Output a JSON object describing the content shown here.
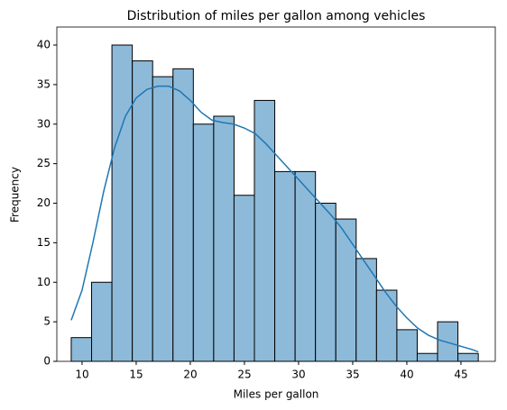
{
  "chart_data": {
    "type": "histogram",
    "title": "Distribution of miles per gallon among vehicles",
    "xlabel": "Miles per gallon",
    "ylabel": "Frequency",
    "bins": [
      9,
      10.88,
      12.76,
      14.64,
      16.52,
      18.4,
      20.28,
      22.16,
      24.04,
      25.92,
      27.8,
      29.68,
      31.56,
      33.44,
      35.32,
      37.2,
      39.08,
      40.96,
      42.84,
      44.72,
      46.6
    ],
    "counts": [
      3,
      10,
      40,
      38,
      36,
      37,
      30,
      31,
      21,
      33,
      24,
      24,
      20,
      18,
      13,
      9,
      4,
      1,
      5,
      1
    ],
    "color": "#8ebad9",
    "edgecolor": "#000000",
    "kde": {
      "color": "#1f77b4",
      "x": [
        9,
        10,
        11,
        12,
        13,
        14,
        15,
        16,
        17,
        18,
        19,
        20,
        21,
        22,
        23,
        24,
        25,
        26,
        27,
        28,
        29,
        30,
        31,
        32,
        33,
        34,
        35,
        36,
        37,
        38,
        39,
        40,
        41,
        42,
        43,
        44,
        45,
        46,
        46.6
      ],
      "values": [
        5.2,
        9,
        15,
        21.5,
        27,
        31,
        33.3,
        34.4,
        34.8,
        34.8,
        34.2,
        33,
        31.5,
        30.5,
        30.2,
        30,
        29.5,
        28.8,
        27.5,
        26,
        24.5,
        23,
        21.5,
        20,
        18.5,
        16.8,
        14.8,
        12.8,
        10.8,
        8.8,
        7,
        5.5,
        4.2,
        3.3,
        2.7,
        2.3,
        1.9,
        1.5,
        1.2
      ]
    },
    "xlim": [
      7.67,
      48.17
    ],
    "ylim": [
      0,
      42.28
    ],
    "xticks": [
      10,
      15,
      20,
      25,
      30,
      35,
      40,
      45
    ],
    "yticks": [
      0,
      5,
      10,
      15,
      20,
      25,
      30,
      35,
      40
    ]
  }
}
